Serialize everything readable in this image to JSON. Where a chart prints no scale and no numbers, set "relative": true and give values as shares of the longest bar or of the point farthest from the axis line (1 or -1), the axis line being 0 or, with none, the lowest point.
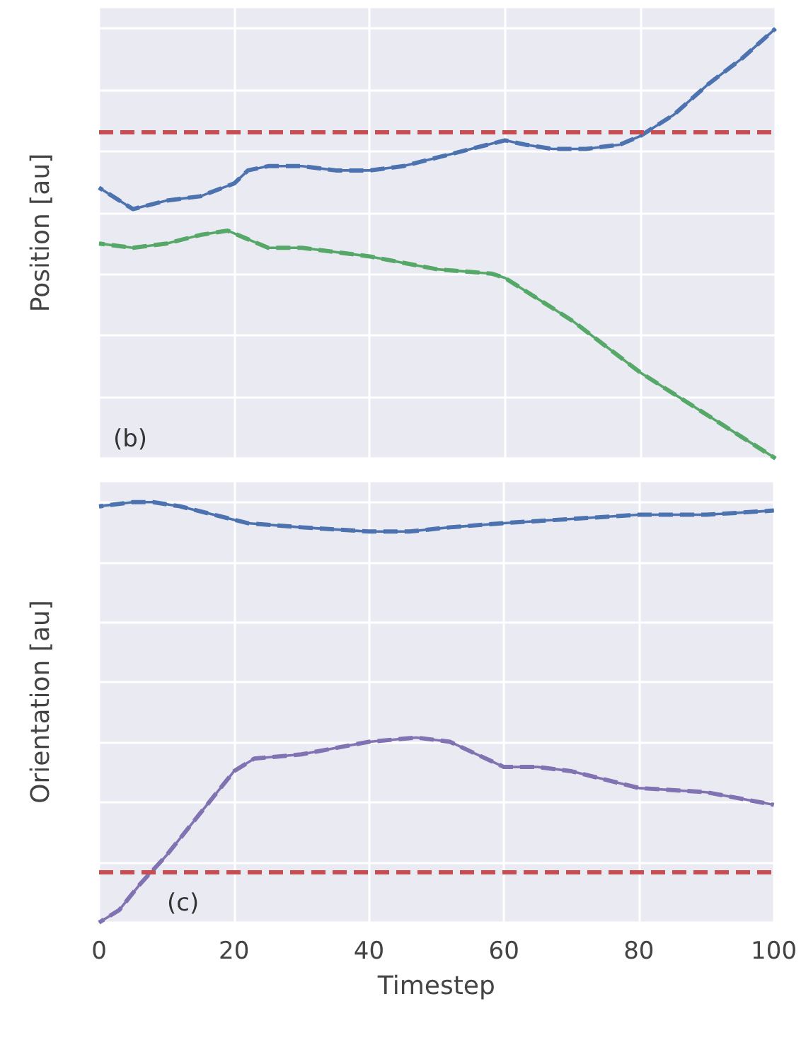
{
  "chart_data": [
    {
      "type": "line",
      "ylabel": "Position [au]",
      "relative": true,
      "tick_labels": false,
      "grid": true,
      "xlim": [
        0,
        100
      ],
      "xticks": [
        0,
        20,
        40,
        60,
        80,
        100
      ],
      "annotations": [
        "(b)"
      ],
      "series": [
        {
          "color": "#4c72b0",
          "line_style": "solid",
          "x": [
            0,
            5,
            10,
            15,
            20,
            22,
            25,
            30,
            35,
            40,
            45,
            50,
            55,
            60,
            63,
            67,
            72,
            77,
            80,
            85,
            90,
            95,
            100
          ],
          "values": [
            0.63,
            0.58,
            0.6,
            0.61,
            0.64,
            0.67,
            0.68,
            0.68,
            0.67,
            0.67,
            0.68,
            0.7,
            0.72,
            0.74,
            0.73,
            0.72,
            0.72,
            0.73,
            0.75,
            0.8,
            0.87,
            0.93,
            1
          ]
        },
        {
          "color": "#4c72b0",
          "line_style": "dashed",
          "x": [
            0,
            5,
            10,
            15,
            20,
            22,
            25,
            30,
            35,
            40,
            45,
            50,
            55,
            60,
            63,
            67,
            72,
            77,
            80,
            85,
            90,
            95,
            100
          ],
          "values": [
            0.63,
            0.58,
            0.6,
            0.61,
            0.64,
            0.67,
            0.68,
            0.68,
            0.67,
            0.67,
            0.68,
            0.7,
            0.72,
            0.74,
            0.73,
            0.72,
            0.72,
            0.73,
            0.75,
            0.8,
            0.87,
            0.93,
            1
          ]
        },
        {
          "color": "#55a868",
          "line_style": "solid",
          "x": [
            0,
            5,
            10,
            15,
            19,
            22,
            25,
            30,
            40,
            50,
            58,
            60,
            65,
            70,
            75,
            80,
            85,
            90,
            95,
            100
          ],
          "values": [
            0.5,
            0.49,
            0.5,
            0.52,
            0.53,
            0.51,
            0.49,
            0.49,
            0.47,
            0.44,
            0.43,
            0.42,
            0.37,
            0.32,
            0.26,
            0.2,
            0.15,
            0.1,
            0.05,
            0
          ]
        },
        {
          "color": "#55a868",
          "line_style": "dashed",
          "x": [
            0,
            5,
            10,
            15,
            19,
            22,
            25,
            30,
            40,
            50,
            58,
            60,
            65,
            70,
            75,
            80,
            85,
            90,
            95,
            100
          ],
          "values": [
            0.5,
            0.49,
            0.5,
            0.52,
            0.53,
            0.51,
            0.49,
            0.49,
            0.47,
            0.44,
            0.43,
            0.42,
            0.37,
            0.32,
            0.26,
            0.2,
            0.15,
            0.1,
            0.05,
            0
          ]
        }
      ],
      "ref_lines": [
        {
          "axis": "y",
          "value": 0.76,
          "color": "#c44e52",
          "line_style": "dashed"
        }
      ]
    },
    {
      "type": "line",
      "ylabel": "Orientation [au]",
      "xlabel": "Timestep",
      "relative": true,
      "tick_labels": "x",
      "grid": true,
      "xlim": [
        0,
        100
      ],
      "xticks": [
        0,
        20,
        40,
        60,
        80,
        100
      ],
      "annotations": [
        "(c)"
      ],
      "series": [
        {
          "color": "#4c72b0",
          "line_style": "solid",
          "x": [
            0,
            5,
            8,
            12,
            17,
            22,
            30,
            40,
            46,
            52,
            60,
            70,
            80,
            90,
            100
          ],
          "values": [
            0.99,
            1,
            1,
            0.99,
            0.97,
            0.95,
            0.94,
            0.93,
            0.93,
            0.94,
            0.95,
            0.96,
            0.97,
            0.97,
            0.98
          ]
        },
        {
          "color": "#4c72b0",
          "line_style": "dashed",
          "x": [
            0,
            5,
            8,
            12,
            17,
            22,
            30,
            40,
            46,
            52,
            60,
            70,
            80,
            90,
            100
          ],
          "values": [
            0.99,
            1,
            1,
            0.99,
            0.97,
            0.95,
            0.94,
            0.93,
            0.93,
            0.94,
            0.95,
            0.96,
            0.97,
            0.97,
            0.98
          ]
        },
        {
          "color": "#8172b2",
          "line_style": "solid",
          "x": [
            0,
            3,
            6,
            10,
            15,
            20,
            23,
            30,
            40,
            47,
            52,
            56,
            60,
            65,
            70,
            80,
            90,
            100
          ],
          "values": [
            0,
            0.03,
            0.09,
            0.16,
            0.26,
            0.36,
            0.39,
            0.4,
            0.43,
            0.44,
            0.43,
            0.4,
            0.37,
            0.37,
            0.36,
            0.32,
            0.31,
            0.28
          ]
        },
        {
          "color": "#8172b2",
          "line_style": "dashed",
          "x": [
            0,
            3,
            6,
            10,
            15,
            20,
            23,
            30,
            40,
            47,
            52,
            56,
            60,
            65,
            70,
            80,
            90,
            100
          ],
          "values": [
            0,
            0.03,
            0.09,
            0.16,
            0.26,
            0.36,
            0.39,
            0.4,
            0.43,
            0.44,
            0.43,
            0.4,
            0.37,
            0.37,
            0.36,
            0.32,
            0.31,
            0.28
          ]
        }
      ],
      "ref_lines": [
        {
          "axis": "y",
          "value": 0.12,
          "color": "#c44e52",
          "line_style": "dashed"
        }
      ]
    }
  ]
}
